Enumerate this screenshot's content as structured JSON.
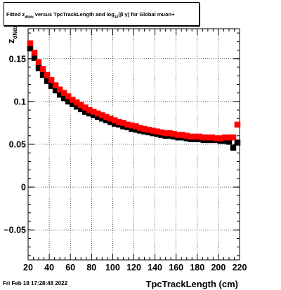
{
  "title": {
    "prefix": "Fitted  z",
    "sub": "dNdx",
    "middle": "  versus TpcTrackLength and log",
    "sub2": "10",
    "suffix": "(β γ) for Global muon+"
  },
  "footer": {
    "date": "Fri Feb 18 17:28:48 2022"
  },
  "chart_data": {
    "type": "scatter",
    "title": "Fitted z_dNdx versus TpcTrackLength and log10(β γ) for Global muon+",
    "xlabel": "TpcTrackLength (cm)",
    "ylabel": "z_dNdx",
    "ylabel_main": "z",
    "ylabel_sub": "dNdx",
    "xlim": [
      20,
      220
    ],
    "ylim": [
      -0.085,
      0.185
    ],
    "x_ticks": [
      20,
      40,
      60,
      80,
      100,
      120,
      140,
      160,
      180,
      200,
      220
    ],
    "x_tick_labels": [
      "20",
      "40",
      "60",
      "80",
      "100",
      "120",
      "140",
      "160",
      "180",
      "200",
      "220"
    ],
    "y_ticks": [
      -0.05,
      0,
      0.05,
      0.1,
      0.15
    ],
    "y_tick_labels": [
      "−0.05",
      "0",
      "0.05",
      "0.1",
      "0.15"
    ],
    "grid": true,
    "series": [
      {
        "color": "#000000",
        "x": [
          22,
          26,
          30,
          34,
          38,
          42,
          46,
          50,
          54,
          58,
          62,
          66,
          70,
          74,
          78,
          82,
          86,
          90,
          94,
          98,
          102,
          106,
          110,
          114,
          118,
          122,
          126,
          130,
          134,
          138,
          142,
          146,
          150,
          154,
          158,
          162,
          166,
          170,
          174,
          178,
          182,
          186,
          190,
          194,
          198,
          202,
          206,
          210,
          214,
          218
        ],
        "y": [
          0.162,
          0.151,
          0.139,
          0.131,
          0.124,
          0.118,
          0.113,
          0.108,
          0.104,
          0.1,
          0.097,
          0.094,
          0.091,
          0.088,
          0.086,
          0.084,
          0.082,
          0.08,
          0.078,
          0.076,
          0.074,
          0.073,
          0.071,
          0.07,
          0.068,
          0.067,
          0.066,
          0.065,
          0.064,
          0.063,
          0.062,
          0.061,
          0.06,
          0.06,
          0.059,
          0.058,
          0.058,
          0.057,
          0.056,
          0.056,
          0.056,
          0.055,
          0.055,
          0.055,
          0.055,
          0.054,
          0.054,
          0.053,
          0.046,
          0.052
        ]
      },
      {
        "color": "#ff0000",
        "x": [
          22,
          26,
          30,
          34,
          38,
          42,
          46,
          50,
          54,
          58,
          62,
          66,
          70,
          74,
          78,
          82,
          86,
          90,
          94,
          98,
          102,
          106,
          110,
          114,
          118,
          122,
          126,
          130,
          134,
          138,
          142,
          146,
          150,
          154,
          158,
          162,
          166,
          170,
          174,
          178,
          182,
          186,
          190,
          194,
          198,
          202,
          206,
          210,
          214,
          218
        ],
        "y": [
          0.168,
          0.157,
          0.146,
          0.138,
          0.131,
          0.125,
          0.119,
          0.114,
          0.11,
          0.106,
          0.102,
          0.099,
          0.096,
          0.093,
          0.09,
          0.088,
          0.086,
          0.084,
          0.082,
          0.08,
          0.078,
          0.076,
          0.075,
          0.073,
          0.072,
          0.071,
          0.069,
          0.068,
          0.067,
          0.066,
          0.065,
          0.064,
          0.063,
          0.063,
          0.062,
          0.061,
          0.061,
          0.06,
          0.059,
          0.059,
          0.059,
          0.058,
          0.058,
          0.058,
          0.057,
          0.057,
          0.058,
          0.058,
          0.058,
          0.073
        ]
      }
    ]
  }
}
